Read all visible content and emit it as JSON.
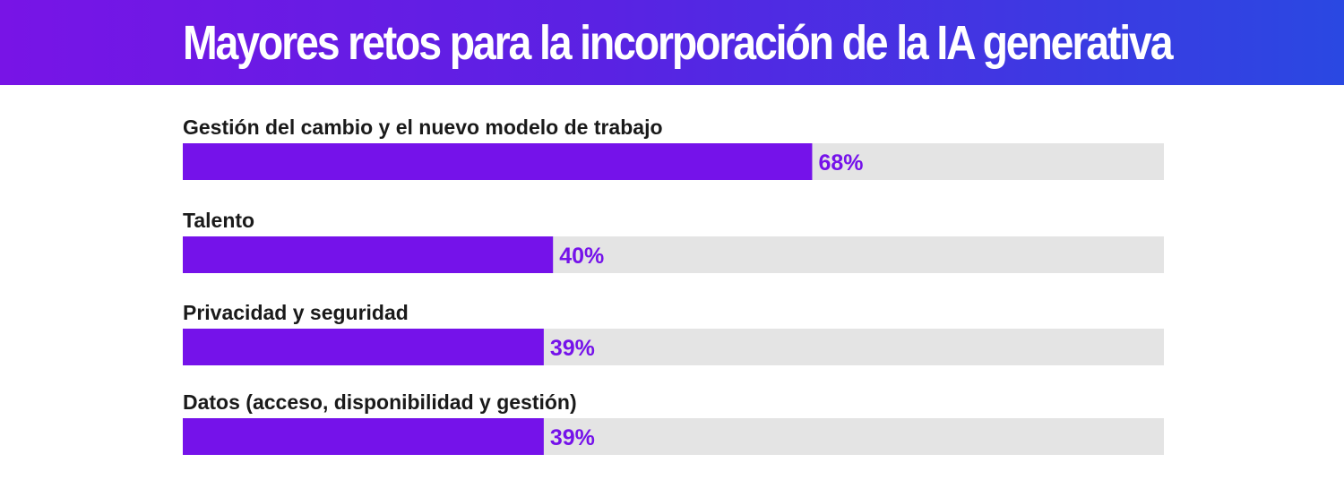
{
  "chart_data": {
    "type": "bar",
    "orientation": "horizontal",
    "title": "Mayores retos para la incorporación de la IA generativa",
    "categories": [
      "Gestión del cambio y el nuevo modelo de trabajo",
      "Talento",
      "Privacidad y seguridad",
      "Datos (acceso, disponibilidad y gestión)"
    ],
    "values": [
      68,
      40,
      39,
      39
    ],
    "value_labels": [
      "68%",
      "40%",
      "39%",
      "39%"
    ],
    "xlim": [
      0,
      106
    ],
    "unit": "%",
    "colors": {
      "bar": "#7512ea",
      "track": "#e4e4e4",
      "value_text": "#7512ea"
    }
  }
}
